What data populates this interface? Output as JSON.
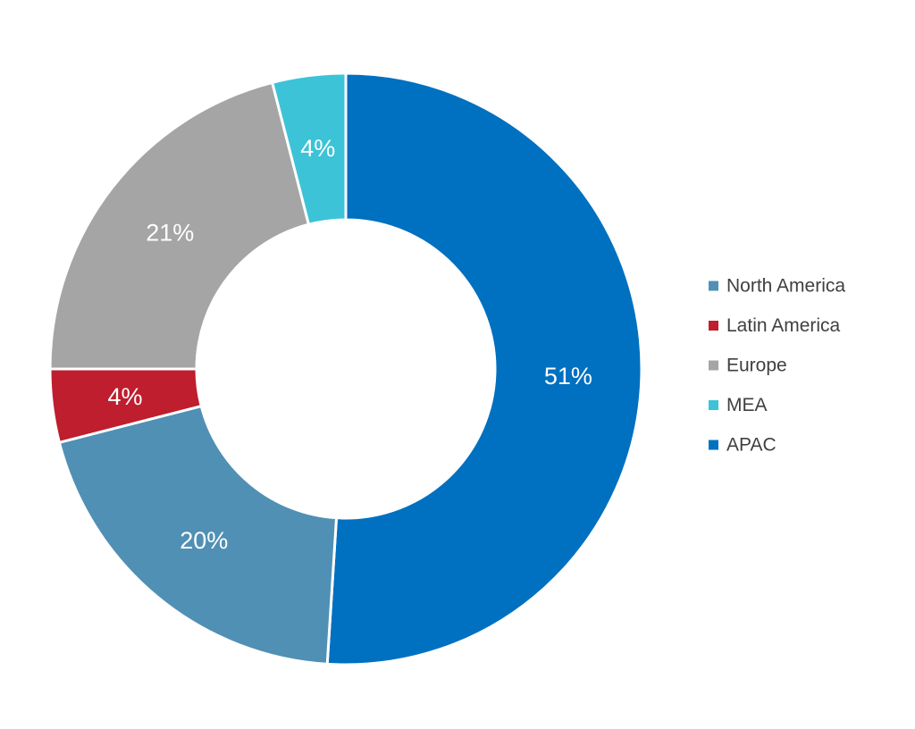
{
  "chart_data": {
    "type": "pie",
    "variant": "donut",
    "title": "",
    "categories": [
      "North America",
      "Latin America",
      "Europe",
      "MEA",
      "APAC"
    ],
    "values": [
      20,
      4,
      21,
      4,
      51
    ],
    "labels": [
      "20%",
      "4%",
      "21%",
      "4%",
      "51%"
    ],
    "colors": [
      "#5090b4",
      "#be1e2d",
      "#a5a5a5",
      "#3cc3d7",
      "#0070c0"
    ],
    "start_category": "APAC",
    "direction": "clockwise",
    "legend_position": "right"
  }
}
